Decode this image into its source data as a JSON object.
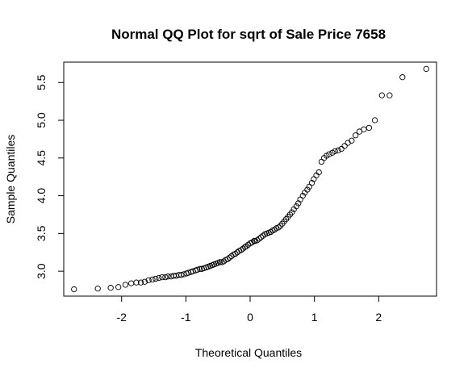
{
  "chart_data": {
    "type": "scatter",
    "title": "Normal QQ Plot for sqrt of Sale Price 7658",
    "xlabel": "Theoretical Quantiles",
    "ylabel": "Sample Quantiles",
    "xlim": [
      -2.9,
      2.9
    ],
    "ylim": [
      2.67,
      5.77
    ],
    "xticks": [
      -2,
      -1,
      0,
      1,
      2
    ],
    "xtick_labels": [
      "-2",
      "-1",
      "0",
      "1",
      "2"
    ],
    "yticks": [
      3.0,
      3.5,
      4.0,
      4.5,
      5.0,
      5.5
    ],
    "ytick_labels": [
      "3.0",
      "3.5",
      "4.0",
      "4.5",
      "5.0",
      "5.5"
    ],
    "grid": false,
    "legend": "none",
    "points": {
      "x": [
        -2.74,
        -2.37,
        -2.17,
        -2.05,
        -1.94,
        -1.85,
        -1.77,
        -1.7,
        -1.64,
        -1.58,
        -1.52,
        -1.47,
        -1.42,
        -1.37,
        -1.32,
        -1.28,
        -1.23,
        -1.19,
        -1.15,
        -1.11,
        -1.07,
        -1.03,
        -0.99,
        -0.96,
        -0.92,
        -0.89,
        -0.85,
        -0.82,
        -0.78,
        -0.75,
        -0.72,
        -0.68,
        -0.65,
        -0.62,
        -0.59,
        -0.56,
        -0.53,
        -0.5,
        -0.47,
        -0.44,
        -0.41,
        -0.38,
        -0.35,
        -0.32,
        -0.29,
        -0.26,
        -0.23,
        -0.2,
        -0.17,
        -0.14,
        -0.11,
        -0.08,
        -0.06,
        -0.03,
        0.0,
        0.03,
        0.06,
        0.08,
        0.11,
        0.14,
        0.17,
        0.2,
        0.23,
        0.26,
        0.29,
        0.32,
        0.35,
        0.38,
        0.41,
        0.44,
        0.47,
        0.5,
        0.53,
        0.56,
        0.59,
        0.62,
        0.65,
        0.68,
        0.72,
        0.75,
        0.78,
        0.82,
        0.85,
        0.89,
        0.92,
        0.96,
        0.99,
        1.03,
        1.07,
        1.11,
        1.15,
        1.19,
        1.23,
        1.28,
        1.32,
        1.37,
        1.42,
        1.47,
        1.52,
        1.58,
        1.64,
        1.7,
        1.77,
        1.85,
        1.94,
        2.05,
        2.17,
        2.37,
        2.74
      ],
      "y": [
        2.76,
        2.77,
        2.78,
        2.79,
        2.82,
        2.84,
        2.85,
        2.85,
        2.86,
        2.88,
        2.89,
        2.9,
        2.91,
        2.92,
        2.92,
        2.93,
        2.93,
        2.94,
        2.94,
        2.95,
        2.95,
        2.96,
        2.97,
        2.98,
        2.99,
        3.0,
        3.01,
        3.02,
        3.03,
        3.03,
        3.04,
        3.05,
        3.06,
        3.07,
        3.08,
        3.09,
        3.1,
        3.11,
        3.12,
        3.12,
        3.13,
        3.15,
        3.16,
        3.18,
        3.2,
        3.22,
        3.23,
        3.25,
        3.27,
        3.28,
        3.3,
        3.32,
        3.33,
        3.35,
        3.37,
        3.38,
        3.4,
        3.4,
        3.41,
        3.43,
        3.45,
        3.47,
        3.49,
        3.5,
        3.51,
        3.52,
        3.54,
        3.55,
        3.57,
        3.58,
        3.6,
        3.63,
        3.66,
        3.69,
        3.72,
        3.75,
        3.78,
        3.82,
        3.86,
        3.9,
        3.95,
        4.0,
        4.04,
        4.08,
        4.12,
        4.17,
        4.22,
        4.27,
        4.31,
        4.45,
        4.5,
        4.53,
        4.55,
        4.57,
        4.59,
        4.6,
        4.62,
        4.66,
        4.7,
        4.73,
        4.8,
        4.85,
        4.88,
        4.9,
        5.0,
        5.33,
        5.33,
        5.57,
        5.68
      ]
    }
  }
}
